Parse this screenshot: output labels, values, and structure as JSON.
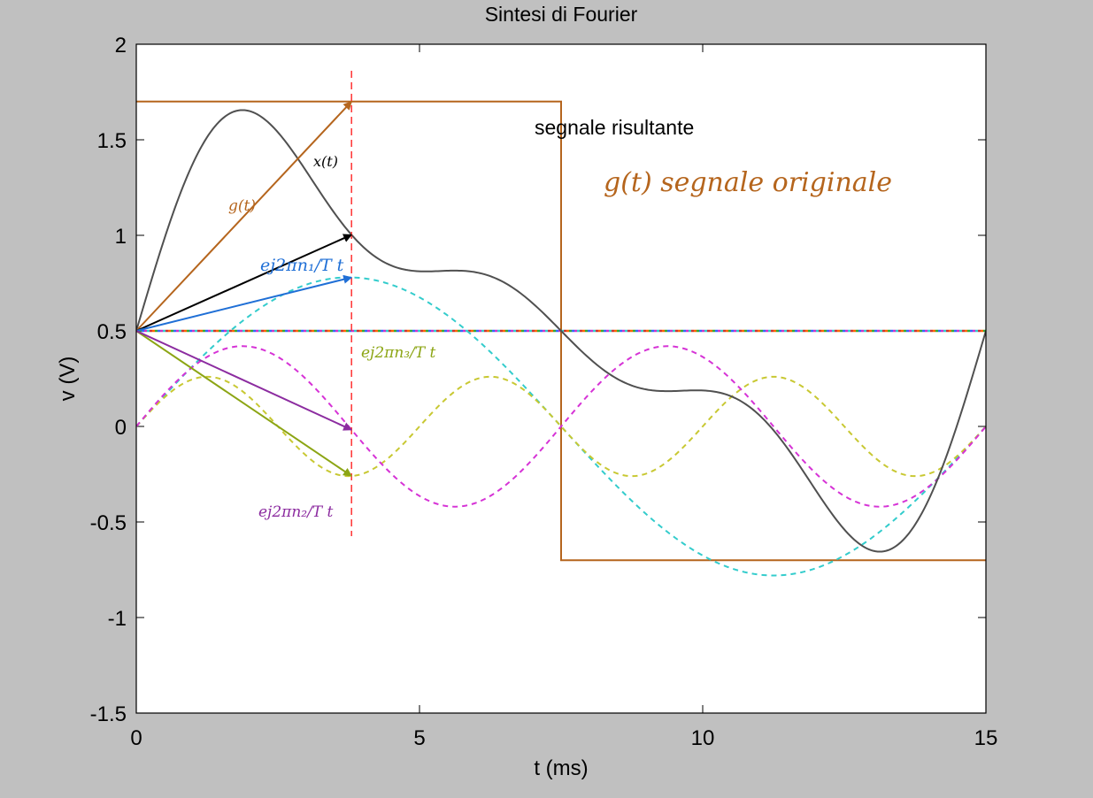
{
  "chart_data": {
    "type": "line",
    "title": "Sintesi di Fourier",
    "xlabel": "t (ms)",
    "ylabel": "v (V)",
    "xlim": [
      0,
      15
    ],
    "ylim": [
      -1.5,
      2
    ],
    "xticks": [
      0,
      5,
      10,
      15
    ],
    "yticks": [
      -1.5,
      -1,
      -0.5,
      0,
      0.5,
      1,
      1.5,
      2
    ],
    "xtick_labels": [
      "0",
      "5",
      "10",
      "15"
    ],
    "ytick_labels": [
      "-1.5",
      "-1",
      "-0.5",
      "0",
      "0.5",
      "1",
      "1.5",
      "2"
    ],
    "grid": false,
    "period_ms": 15,
    "offset": 0.5,
    "series": [
      {
        "name": "segnale originale g(t)",
        "kind": "square",
        "high": 1.7,
        "low": -0.7,
        "switch_t": 7.5,
        "color": "#b5651d"
      },
      {
        "name": "armonica 1",
        "kind": "sine",
        "amplitude": 0.78,
        "harmonic": 1,
        "color": "#33cccc"
      },
      {
        "name": "armonica 3",
        "kind": "sine",
        "amplitude": 0.26,
        "harmonic": 3,
        "color": "#c8c832"
      },
      {
        "name": "armonica 2",
        "kind": "sine",
        "amplitude": 0.42,
        "harmonic": 2,
        "color": "#d633d6"
      },
      {
        "name": "segnale risultante",
        "kind": "sum",
        "color": "#505050"
      }
    ],
    "marker_t": 3.8,
    "annotations": {
      "resultant_label": "segnale risultante",
      "original_label": "g(t) segnale originale",
      "vector_g": "g(t)",
      "vector_x": "x(t)",
      "vector_n1": "ej2πn₁/T t",
      "vector_n2": "ej2πn₂/T t",
      "vector_n3": "ej2πn₃/T t"
    },
    "colors": {
      "background": "#c0c0c0",
      "plot_bg": "#ffffff",
      "marker_line": "#ff3333",
      "vector_black": "#000000",
      "vector_blue": "#1f6fd6",
      "vector_olive": "#8ca514",
      "vector_purple": "#8c2ca0"
    }
  }
}
